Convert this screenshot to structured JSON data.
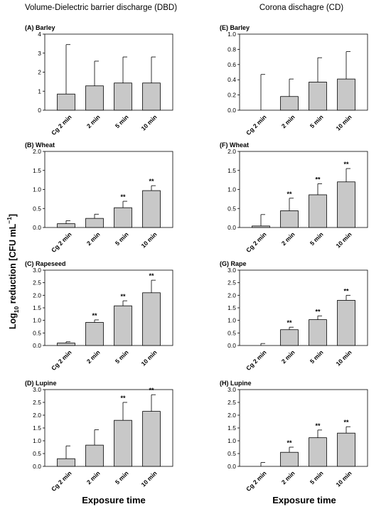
{
  "figure": {
    "left_column_title": "Volume-Dielectric barrier discharge (DBD)",
    "right_column_title": "Corona dischagre (CD)",
    "xlabel": "Exposure time",
    "ylabel_main": "Log",
    "ylabel_sub": "10",
    "ylabel_rest": " reduction [CFU mL",
    "ylabel_sup": "−1",
    "ylabel_end": "]",
    "bar_color": "#c8c8c8"
  },
  "chart_data": [
    {
      "type": "bar",
      "title": "(A) Barley",
      "categories": [
        "Cg 2 min",
        "2 min",
        "5 min",
        "10 min"
      ],
      "values": [
        0.85,
        1.28,
        1.43,
        1.43
      ],
      "error": [
        2.6,
        1.3,
        1.37,
        1.37
      ],
      "significance": [
        "",
        "",
        "",
        ""
      ],
      "ylim": [
        0,
        4
      ],
      "ticks": [
        "0",
        "1",
        "2",
        "3",
        "4"
      ],
      "tick_values": [
        0,
        1,
        2,
        3,
        4
      ]
    },
    {
      "type": "bar",
      "title": "(B) Wheat",
      "categories": [
        "Cg 2 min",
        "2 min",
        "5 min",
        "10 min"
      ],
      "values": [
        0.1,
        0.24,
        0.52,
        0.97
      ],
      "error": [
        0.08,
        0.11,
        0.17,
        0.13
      ],
      "significance": [
        "",
        "",
        "**",
        "**"
      ],
      "ylim": [
        0,
        2
      ],
      "ticks": [
        "0.0",
        "0.5",
        "1.0",
        "1.5",
        "2.0"
      ],
      "tick_values": [
        0,
        0.5,
        1,
        1.5,
        2
      ]
    },
    {
      "type": "bar",
      "title": "(C) Rapeseed",
      "categories": [
        "Cg 2 min",
        "2 min",
        "5 min",
        "10 min"
      ],
      "values": [
        0.1,
        0.92,
        1.58,
        2.1
      ],
      "error": [
        0.05,
        0.1,
        0.2,
        0.5
      ],
      "significance": [
        "",
        "**",
        "**",
        "**"
      ],
      "ylim": [
        0,
        3
      ],
      "ticks": [
        "0.0",
        "0.5",
        "1.0",
        "1.5",
        "2.0",
        "2.5",
        "3.0"
      ],
      "tick_values": [
        0,
        0.5,
        1,
        1.5,
        2,
        2.5,
        3
      ]
    },
    {
      "type": "bar",
      "title": "(D) Lupine",
      "categories": [
        "Cg 2 min",
        "2 min",
        "5 min",
        "10 min"
      ],
      "values": [
        0.3,
        0.83,
        1.8,
        2.15
      ],
      "error": [
        0.5,
        0.6,
        0.7,
        0.65
      ],
      "significance": [
        "",
        "",
        "**",
        "**"
      ],
      "ylim": [
        0,
        3
      ],
      "ticks": [
        "0.0",
        "0.5",
        "1.0",
        "1.5",
        "2.0",
        "2.5",
        "3.0"
      ],
      "tick_values": [
        0,
        0.5,
        1,
        1.5,
        2,
        2.5,
        3
      ]
    },
    {
      "type": "bar",
      "title": "(E) Barley",
      "categories": [
        "Cg 2 min",
        "2 min",
        "5 min",
        "10 min"
      ],
      "values": [
        0.0,
        0.18,
        0.37,
        0.41
      ],
      "error": [
        0.47,
        0.23,
        0.32,
        0.36
      ],
      "significance": [
        "",
        "",
        "",
        ""
      ],
      "ylim": [
        0,
        1
      ],
      "ticks": [
        "0.0",
        "0.2",
        "0.4",
        "0.6",
        "0.8",
        "1.0"
      ],
      "tick_values": [
        0,
        0.2,
        0.4,
        0.6,
        0.8,
        1
      ]
    },
    {
      "type": "bar",
      "title": "(F) Wheat",
      "categories": [
        "Cg 2 min",
        "2 min",
        "5 min",
        "10 min"
      ],
      "values": [
        0.04,
        0.44,
        0.86,
        1.2
      ],
      "error": [
        0.3,
        0.33,
        0.29,
        0.35
      ],
      "significance": [
        "",
        "**",
        "**",
        "**"
      ],
      "ylim": [
        0,
        2
      ],
      "ticks": [
        "0.0",
        "0.5",
        "1.0",
        "1.5",
        "2.0"
      ],
      "tick_values": [
        0,
        0.5,
        1,
        1.5,
        2
      ]
    },
    {
      "type": "bar",
      "title": "(G) Rape",
      "categories": [
        "Cg 2 min",
        "2 min",
        "5 min",
        "10 min"
      ],
      "values": [
        0.0,
        0.63,
        1.03,
        1.8
      ],
      "error": [
        0.08,
        0.1,
        0.15,
        0.2
      ],
      "significance": [
        "",
        "**",
        "**",
        "**"
      ],
      "ylim": [
        0,
        3
      ],
      "ticks": [
        "0.0",
        "0.5",
        "1.0",
        "1.5",
        "2.0",
        "2.5",
        "3.0"
      ],
      "tick_values": [
        0,
        0.5,
        1,
        1.5,
        2,
        2.5,
        3
      ]
    },
    {
      "type": "bar",
      "title": "(H) Lupine",
      "categories": [
        "Cg 2 min",
        "2 min",
        "5 min",
        "10 min"
      ],
      "values": [
        0.0,
        0.55,
        1.12,
        1.3
      ],
      "error": [
        0.15,
        0.2,
        0.3,
        0.25
      ],
      "significance": [
        "",
        "**",
        "**",
        "**"
      ],
      "ylim": [
        0,
        3
      ],
      "ticks": [
        "0.0",
        "0.5",
        "1.0",
        "1.5",
        "2.0",
        "2.5",
        "3.0"
      ],
      "tick_values": [
        0,
        0.5,
        1,
        1.5,
        2,
        2.5,
        3
      ]
    }
  ]
}
